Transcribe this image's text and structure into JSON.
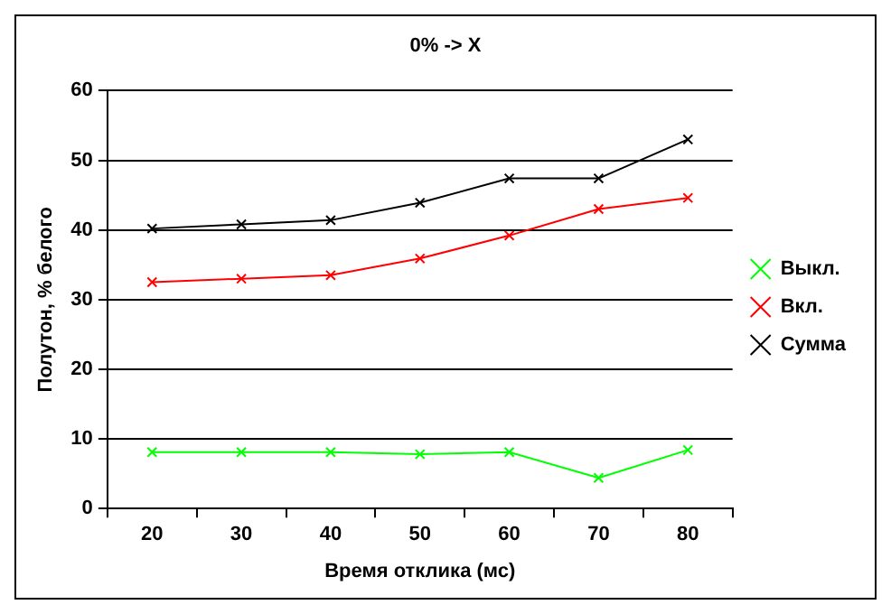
{
  "chart_data": {
    "type": "line",
    "title": "0% -> X",
    "xlabel": "Время отклика (мс)",
    "ylabel": "Полутон, % белого",
    "categories": [
      "20",
      "30",
      "40",
      "50",
      "60",
      "70",
      "80"
    ],
    "series": [
      {
        "name": "Выкл.",
        "color": "#00ff00",
        "values": [
          8.1,
          8.1,
          8.1,
          7.8,
          8.1,
          4.4,
          8.4
        ]
      },
      {
        "name": "Вкл.",
        "color": "#ff0000",
        "values": [
          32.5,
          33.0,
          33.5,
          35.9,
          39.2,
          43.0,
          44.6
        ]
      },
      {
        "name": "Сумма",
        "color": "#000000",
        "values": [
          40.2,
          40.8,
          41.4,
          43.9,
          47.4,
          47.4,
          53.0
        ]
      }
    ],
    "ylim": [
      0,
      60
    ],
    "yticks": [
      0,
      10,
      20,
      30,
      40,
      50,
      60
    ],
    "grid": "y",
    "legend": "right",
    "marker": "cross",
    "line_style": "solid"
  }
}
